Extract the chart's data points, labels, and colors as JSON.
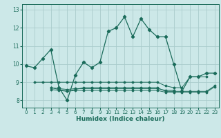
{
  "xlabel": "Humidex (Indice chaleur)",
  "background_color": "#cce8e8",
  "grid_color": "#aacccc",
  "line_color": "#1a6b5a",
  "xlim": [
    -0.5,
    23.5
  ],
  "ylim": [
    7.6,
    13.3
  ],
  "yticks": [
    8,
    9,
    10,
    11,
    12,
    13
  ],
  "xticks": [
    0,
    1,
    2,
    3,
    4,
    5,
    6,
    7,
    8,
    9,
    10,
    11,
    12,
    13,
    14,
    15,
    16,
    17,
    18,
    19,
    20,
    21,
    22,
    23
  ],
  "main_line": [
    9.9,
    9.8,
    10.3,
    10.8,
    8.7,
    8.0,
    9.4,
    10.1,
    9.8,
    10.1,
    11.8,
    12.0,
    12.6,
    11.5,
    12.5,
    11.9,
    11.5,
    11.5,
    10.0,
    8.5,
    9.3,
    9.3,
    9.5,
    9.5
  ],
  "flat_lines": [
    {
      "x": [
        1,
        2,
        3,
        4,
        5,
        6,
        7,
        8,
        9,
        10,
        11,
        12,
        13,
        14,
        15,
        16,
        17,
        18,
        19,
        20,
        21,
        22
      ],
      "y": [
        9.0,
        9.0,
        9.0,
        9.0,
        9.0,
        9.0,
        9.0,
        9.0,
        9.0,
        9.0,
        9.0,
        9.0,
        9.0,
        9.0,
        9.0,
        9.0,
        8.8,
        8.7,
        8.7,
        9.3,
        9.3,
        9.3
      ]
    },
    {
      "x": [
        3,
        4,
        5,
        6,
        7,
        8,
        9,
        10,
        11,
        12,
        13,
        14,
        15,
        16,
        17,
        18,
        19,
        20,
        21,
        22,
        23
      ],
      "y": [
        8.7,
        8.6,
        8.5,
        8.6,
        8.7,
        8.7,
        8.7,
        8.7,
        8.7,
        8.7,
        8.7,
        8.7,
        8.7,
        8.7,
        8.5,
        8.5,
        8.5,
        8.5,
        8.5,
        8.5,
        8.8
      ]
    },
    {
      "x": [
        3,
        4,
        5,
        6,
        7,
        8,
        9,
        10,
        11,
        12,
        13,
        14,
        15,
        16,
        17,
        18
      ],
      "y": [
        8.7,
        8.65,
        8.6,
        8.65,
        8.65,
        8.65,
        8.65,
        8.65,
        8.65,
        8.65,
        8.65,
        8.65,
        8.65,
        8.65,
        8.55,
        8.55
      ]
    },
    {
      "x": [
        3,
        4,
        5,
        6,
        7,
        8,
        9,
        10,
        11,
        12,
        13,
        14,
        15,
        16,
        17,
        18,
        19,
        20,
        21,
        22,
        23
      ],
      "y": [
        8.6,
        8.55,
        8.5,
        8.55,
        8.55,
        8.55,
        8.55,
        8.55,
        8.55,
        8.55,
        8.55,
        8.55,
        8.55,
        8.55,
        8.45,
        8.45,
        8.45,
        8.45,
        8.45,
        8.45,
        8.75
      ]
    }
  ]
}
